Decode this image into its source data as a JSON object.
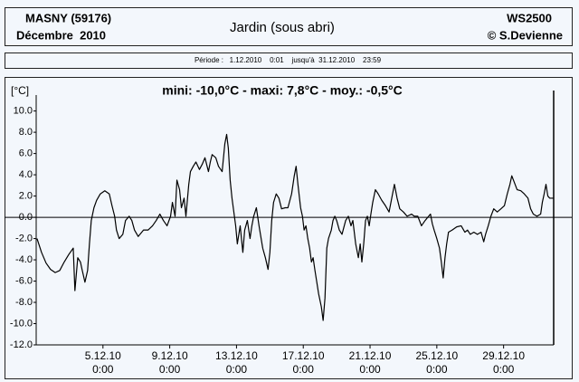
{
  "header": {
    "station": "MASNY (59176)",
    "month": "Décembre  2010",
    "device": "WS2500",
    "author": "© S.Devienne",
    "period": "Période :   1.12.2010    0:01    jusqu'à  31.12.2010    23:59"
  },
  "chart_data": {
    "type": "line",
    "title": "Jardin (sous abri)",
    "subtitle": "mini: -10,0°C - maxi: 7,8°C - moy.: -0,5°C",
    "y_label": "[°C]",
    "color": "#000000",
    "grid": false,
    "xlim": [
      0,
      31
    ],
    "ylim": [
      -12,
      11.5
    ],
    "xticks": [
      {
        "value": 4,
        "label": "5.12.10",
        "time": "0:00"
      },
      {
        "value": 8,
        "label": "9.12.10",
        "time": "0:00"
      },
      {
        "value": 12,
        "label": "13.12.10",
        "time": "0:00"
      },
      {
        "value": 16,
        "label": "17.12.10",
        "time": "0:00"
      },
      {
        "value": 20,
        "label": "21.12.10",
        "time": "0:00"
      },
      {
        "value": 24,
        "label": "25.12.10",
        "time": "0:00"
      },
      {
        "value": 28,
        "label": "29.12.10",
        "time": "0:00"
      }
    ],
    "yticks": [
      {
        "value": 10,
        "label": "10.0"
      },
      {
        "value": 8,
        "label": "8.0"
      },
      {
        "value": 6,
        "label": "6.0"
      },
      {
        "value": 4,
        "label": "4.0"
      },
      {
        "value": 2,
        "label": "2.0"
      },
      {
        "value": 0,
        "label": "0.0"
      },
      {
        "value": -2,
        "label": "-2.0"
      },
      {
        "value": -4,
        "label": "-4.0"
      },
      {
        "value": -6,
        "label": "-6.0"
      },
      {
        "value": -8,
        "label": "-8.0"
      },
      {
        "value": -10,
        "label": "-10.0"
      },
      {
        "value": -12,
        "label": "-12.0"
      }
    ],
    "x": [
      0.05,
      0.32,
      0.59,
      0.86,
      1.14,
      1.41,
      1.68,
      1.95,
      2.22,
      2.32,
      2.49,
      2.65,
      2.76,
      2.92,
      3.08,
      3.19,
      3.3,
      3.46,
      3.62,
      3.84,
      4.11,
      4.38,
      4.54,
      4.7,
      4.81,
      4.97,
      5.19,
      5.35,
      5.57,
      5.73,
      5.89,
      6.11,
      6.43,
      6.7,
      6.97,
      7.19,
      7.41,
      7.62,
      7.84,
      8.05,
      8.16,
      8.32,
      8.43,
      8.59,
      8.7,
      8.86,
      8.97,
      9.14,
      9.24,
      9.41,
      9.57,
      9.78,
      9.95,
      10.11,
      10.32,
      10.43,
      10.54,
      10.76,
      10.92,
      11.14,
      11.3,
      11.41,
      11.51,
      11.62,
      11.73,
      11.84,
      11.95,
      12.05,
      12.22,
      12.38,
      12.49,
      12.65,
      12.81,
      12.92,
      13.03,
      13.19,
      13.35,
      13.57,
      13.73,
      13.89,
      14.0,
      14.11,
      14.22,
      14.38,
      14.54,
      14.7,
      14.92,
      15.08,
      15.3,
      15.46,
      15.57,
      15.68,
      15.84,
      15.95,
      16.05,
      16.16,
      16.27,
      16.38,
      16.49,
      16.59,
      16.7,
      16.81,
      16.92,
      17.08,
      17.19,
      17.3,
      17.41,
      17.51,
      17.68,
      17.78,
      17.89,
      18.0,
      18.16,
      18.32,
      18.54,
      18.7,
      18.86,
      18.97,
      19.14,
      19.3,
      19.41,
      19.51,
      19.62,
      19.73,
      19.84,
      19.95,
      20.05,
      20.16,
      20.32,
      20.49,
      20.7,
      20.92,
      21.14,
      21.3,
      21.46,
      21.62,
      21.78,
      22.0,
      22.22,
      22.49,
      22.65,
      22.86,
      23.08,
      23.3,
      23.51,
      23.62,
      23.73,
      23.84,
      24.0,
      24.16,
      24.27,
      24.38,
      24.49,
      24.59,
      24.7,
      24.92,
      25.19,
      25.46,
      25.68,
      25.84,
      26.0,
      26.22,
      26.43,
      26.65,
      26.81,
      26.92,
      27.08,
      27.24,
      27.41,
      27.62,
      27.84,
      28.05,
      28.22,
      28.38,
      28.49,
      28.59,
      28.81,
      29.03,
      29.24,
      29.46,
      29.62,
      29.78,
      30.0,
      30.22,
      30.32,
      30.43,
      30.54,
      30.65,
      30.76,
      30.97
    ],
    "values": [
      -2.0,
      -3.3,
      -4.3,
      -4.9,
      -5.2,
      -5.0,
      -4.2,
      -3.5,
      -2.9,
      -6.9,
      -3.8,
      -4.2,
      -5.0,
      -6.1,
      -5.0,
      -2.5,
      -0.3,
      0.9,
      1.6,
      2.2,
      2.5,
      2.2,
      1.1,
      0.1,
      -1.2,
      -2.0,
      -1.6,
      -0.3,
      0.1,
      -0.3,
      -1.2,
      -1.8,
      -1.2,
      -1.2,
      -0.8,
      -0.3,
      0.3,
      -0.3,
      -0.8,
      0.1,
      1.4,
      0.1,
      3.5,
      2.6,
      0.9,
      1.8,
      0.1,
      3.1,
      4.3,
      4.8,
      5.2,
      4.5,
      5.0,
      5.6,
      4.3,
      5.2,
      5.9,
      5.6,
      4.8,
      4.3,
      6.9,
      7.8,
      6.5,
      3.5,
      1.8,
      0.5,
      -0.8,
      -2.5,
      -0.8,
      -3.3,
      -1.2,
      -0.3,
      -2.0,
      -0.8,
      0.1,
      0.9,
      -0.8,
      -2.9,
      -3.8,
      -4.9,
      -3.3,
      -0.3,
      1.4,
      2.2,
      1.8,
      0.8,
      0.9,
      0.9,
      2.2,
      3.9,
      4.8,
      3.1,
      0.9,
      0.1,
      -1.2,
      -0.8,
      -2.0,
      -2.9,
      -4.2,
      -3.8,
      -5.0,
      -6.1,
      -7.2,
      -8.4,
      -9.7,
      -7.6,
      -2.9,
      -2.0,
      -1.2,
      -0.3,
      0.1,
      -0.3,
      -1.2,
      -1.6,
      -0.3,
      0.1,
      -0.8,
      -0.3,
      -2.5,
      -3.8,
      -2.5,
      -4.2,
      -2.5,
      -0.3,
      0.1,
      -0.8,
      0.3,
      1.4,
      2.6,
      2.2,
      1.6,
      1.1,
      0.5,
      1.8,
      3.1,
      1.8,
      0.8,
      0.5,
      0.1,
      0.3,
      0.1,
      0.1,
      -0.8,
      -0.3,
      0.1,
      0.3,
      -0.6,
      -1.2,
      -2.0,
      -2.9,
      -4.2,
      -5.7,
      -3.8,
      -2.5,
      -1.4,
      -1.2,
      -0.9,
      -0.8,
      -1.4,
      -1.2,
      -1.6,
      -1.4,
      -1.6,
      -1.4,
      -2.3,
      -1.6,
      -0.8,
      0.1,
      0.8,
      0.5,
      0.8,
      1.1,
      2.2,
      3.1,
      3.9,
      3.5,
      2.6,
      2.5,
      2.2,
      1.8,
      0.8,
      0.3,
      0.1,
      0.3,
      1.4,
      2.2,
      3.1,
      2.0,
      1.8,
      1.8
    ]
  }
}
